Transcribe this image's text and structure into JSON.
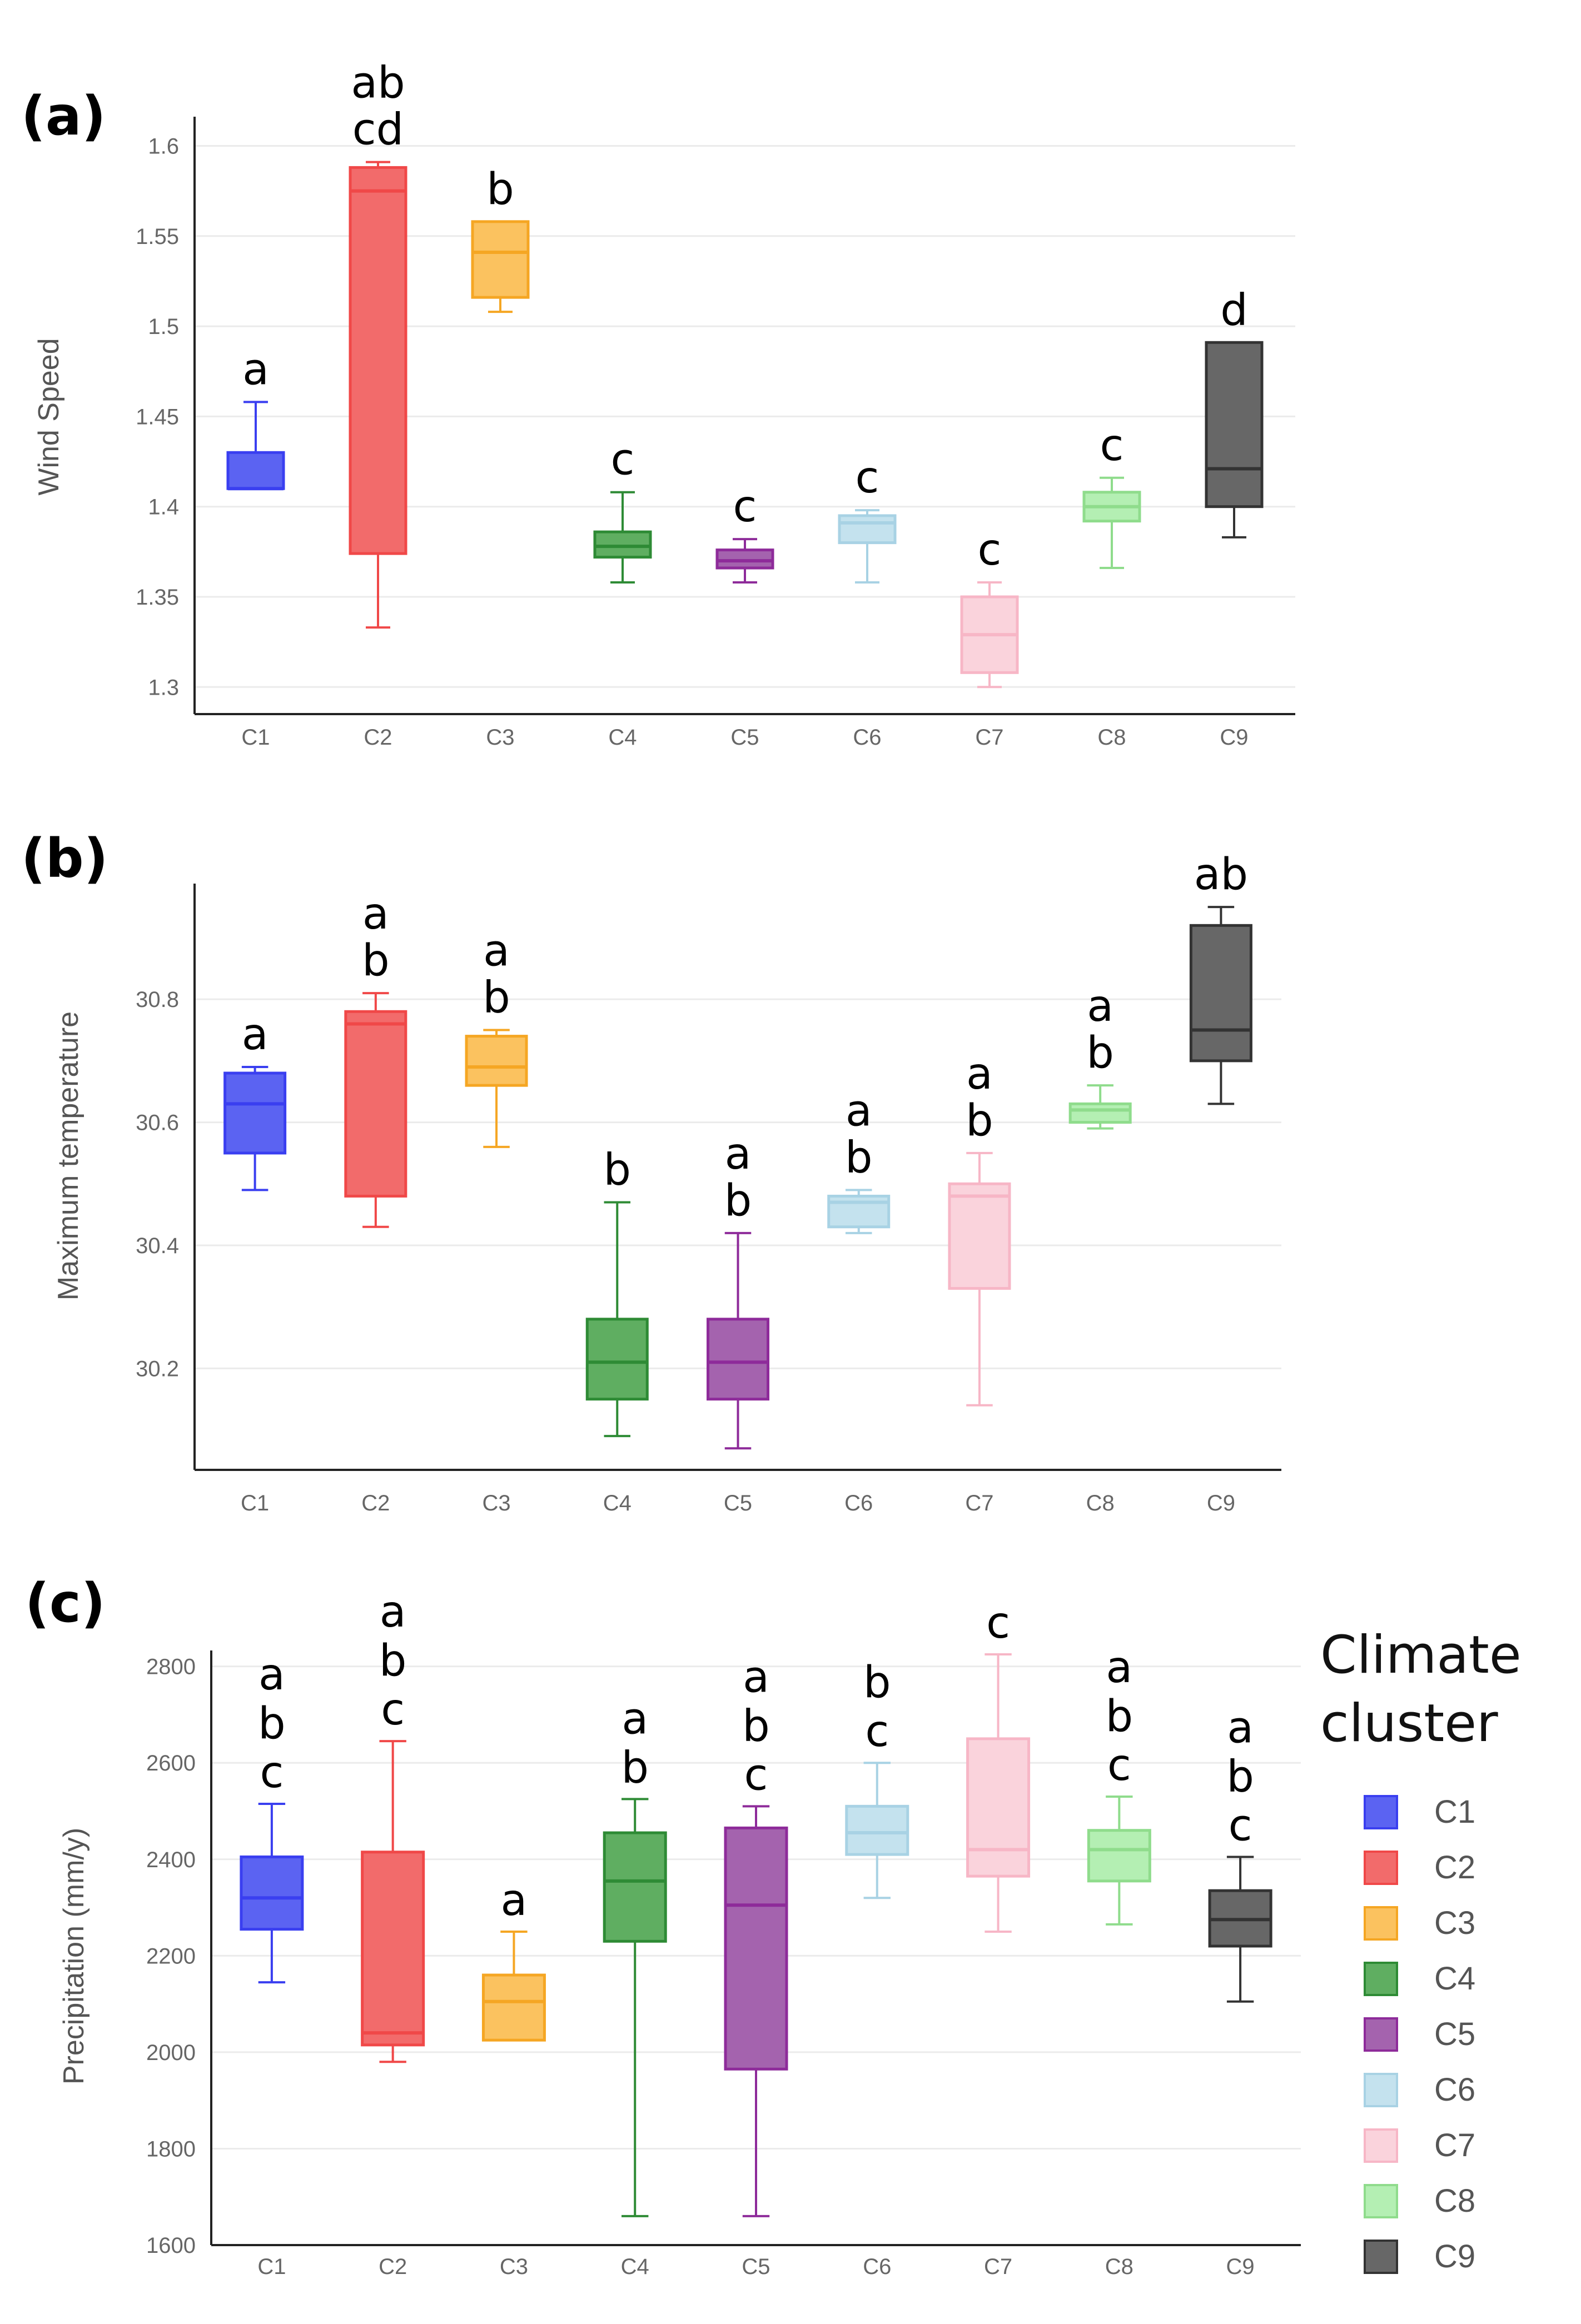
{
  "chart_data": [
    {
      "type": "box",
      "panel": "(a)",
      "ylabel": "Wind Speed",
      "ylim": [
        1.285,
        1.61
      ],
      "yticks": [
        1.3,
        1.35,
        1.4,
        1.45,
        1.5,
        1.55,
        1.6
      ],
      "ytick_labels": [
        "1.3",
        "1.35",
        "1.4",
        "1.45",
        "1.5",
        "1.55",
        "1.6"
      ],
      "categories": [
        "C1",
        "C2",
        "C3",
        "C4",
        "C5",
        "C6",
        "C7",
        "C8",
        "C9"
      ],
      "boxes": [
        {
          "min": 1.41,
          "q1": 1.41,
          "median": 1.41,
          "q3": 1.43,
          "max": 1.458
        },
        {
          "min": 1.333,
          "q1": 1.374,
          "median": 1.575,
          "q3": 1.588,
          "max": 1.591
        },
        {
          "min": 1.508,
          "q1": 1.516,
          "median": 1.541,
          "q3": 1.558,
          "max": 1.558
        },
        {
          "min": 1.358,
          "q1": 1.372,
          "median": 1.378,
          "q3": 1.386,
          "max": 1.408
        },
        {
          "min": 1.358,
          "q1": 1.366,
          "median": 1.37,
          "q3": 1.376,
          "max": 1.382
        },
        {
          "min": 1.358,
          "q1": 1.38,
          "median": 1.391,
          "q3": 1.395,
          "max": 1.398
        },
        {
          "min": 1.3,
          "q1": 1.308,
          "median": 1.329,
          "q3": 1.35,
          "max": 1.358
        },
        {
          "min": 1.366,
          "q1": 1.392,
          "median": 1.4,
          "q3": 1.408,
          "max": 1.416
        },
        {
          "min": 1.383,
          "q1": 1.4,
          "median": 1.421,
          "q3": 1.491,
          "max": 1.491
        }
      ],
      "letters": [
        "a",
        "ab\ncd",
        "b",
        "c",
        "c",
        "c",
        "c",
        "c",
        "d"
      ]
    },
    {
      "type": "box",
      "panel": "(b)",
      "ylabel": "Maximum temperature",
      "ylim": [
        30.035,
        30.97
      ],
      "yticks": [
        30.2,
        30.4,
        30.6,
        30.8
      ],
      "ytick_labels": [
        "30.2",
        "30.4",
        "30.6",
        "30.8"
      ],
      "categories": [
        "C1",
        "C2",
        "C3",
        "C4",
        "C5",
        "C6",
        "C7",
        "C8",
        "C9"
      ],
      "boxes": [
        {
          "min": 30.49,
          "q1": 30.55,
          "median": 30.63,
          "q3": 30.68,
          "max": 30.69
        },
        {
          "min": 30.43,
          "q1": 30.48,
          "median": 30.76,
          "q3": 30.78,
          "max": 30.81
        },
        {
          "min": 30.56,
          "q1": 30.66,
          "median": 30.69,
          "q3": 30.74,
          "max": 30.75
        },
        {
          "min": 30.09,
          "q1": 30.15,
          "median": 30.21,
          "q3": 30.28,
          "max": 30.47
        },
        {
          "min": 30.07,
          "q1": 30.15,
          "median": 30.21,
          "q3": 30.28,
          "max": 30.42
        },
        {
          "min": 30.42,
          "q1": 30.43,
          "median": 30.47,
          "q3": 30.48,
          "max": 30.49
        },
        {
          "min": 30.14,
          "q1": 30.33,
          "median": 30.48,
          "q3": 30.5,
          "max": 30.55
        },
        {
          "min": 30.59,
          "q1": 30.6,
          "median": 30.62,
          "q3": 30.63,
          "max": 30.66
        },
        {
          "min": 30.63,
          "q1": 30.7,
          "median": 30.75,
          "q3": 30.92,
          "max": 30.95
        }
      ],
      "letters": [
        "a",
        "a\nb",
        "a\nb",
        "b",
        "a\nb",
        "a\nb",
        "a\nb",
        "a\nb",
        "ab"
      ]
    },
    {
      "type": "box",
      "panel": "(c)",
      "ylabel": "Precipitation (mm/y)",
      "ylim": [
        1600,
        2810
      ],
      "yticks": [
        1600,
        1800,
        2000,
        2200,
        2400,
        2600,
        2800
      ],
      "ytick_labels": [
        "1600",
        "1800",
        "2000",
        "2200",
        "2400",
        "2600",
        "2800"
      ],
      "categories": [
        "C1",
        "C2",
        "C3",
        "C4",
        "C5",
        "C6",
        "C7",
        "C8",
        "C9"
      ],
      "boxes": [
        {
          "min": 2145,
          "q1": 2255,
          "median": 2320,
          "q3": 2405,
          "max": 2515
        },
        {
          "min": 1980,
          "q1": 2015,
          "median": 2040,
          "q3": 2415,
          "max": 2645
        },
        {
          "min": 2025,
          "q1": 2025,
          "median": 2105,
          "q3": 2160,
          "max": 2250
        },
        {
          "min": 1660,
          "q1": 2230,
          "median": 2355,
          "q3": 2455,
          "max": 2525
        },
        {
          "min": 1660,
          "q1": 1965,
          "median": 2305,
          "q3": 2465,
          "max": 2510
        },
        {
          "min": 2320,
          "q1": 2410,
          "median": 2455,
          "q3": 2510,
          "max": 2600
        },
        {
          "min": 2250,
          "q1": 2365,
          "median": 2420,
          "q3": 2650,
          "max": 2825
        },
        {
          "min": 2265,
          "q1": 2355,
          "median": 2420,
          "q3": 2460,
          "max": 2530
        },
        {
          "min": 2105,
          "q1": 2220,
          "median": 2275,
          "q3": 2335,
          "max": 2405
        }
      ],
      "letters": [
        "a\nb\nc",
        "a\nb\nc",
        "a",
        "a\nb",
        "a\nb\nc",
        "b\nc",
        "c",
        "a\nb\nc",
        "a\nb\nc"
      ]
    }
  ],
  "legend": {
    "title_line1": "Climate",
    "title_line2": "cluster",
    "items": [
      {
        "label": "C1",
        "color": "#5b63f2"
      },
      {
        "label": "C2",
        "color": "#f26b6b"
      },
      {
        "label": "C3",
        "color": "#fbc25f"
      },
      {
        "label": "C4",
        "color": "#5fae61"
      },
      {
        "label": "C5",
        "color": "#a463ae"
      },
      {
        "label": "C6",
        "color": "#c4e2ee"
      },
      {
        "label": "C7",
        "color": "#fad3dc"
      },
      {
        "label": "C8",
        "color": "#b4efb3"
      },
      {
        "label": "C9",
        "color": "#676767"
      }
    ]
  },
  "colors": {
    "stroke": [
      "#3a3ff0",
      "#f04848",
      "#f5a623",
      "#2e8b35",
      "#8e2b9a",
      "#a8d2e4",
      "#f7b6c6",
      "#8fdc8c",
      "#333333"
    ]
  }
}
